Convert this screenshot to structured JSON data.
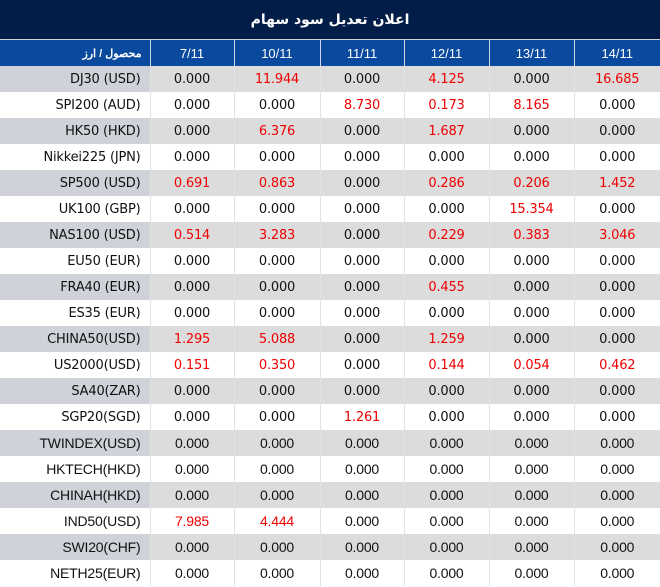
{
  "title": "اعلان تعدیل سود سهام",
  "header": {
    "label": "محصول / ارز",
    "dates": [
      "7/11",
      "10/11",
      "11/11",
      "12/11",
      "13/11",
      "14/11"
    ]
  },
  "colors": {
    "title_bg": "#021e48",
    "header_bg": "#0a4a9e",
    "row_alt_bg": "#dcdcdc",
    "label_alt_bg": "#cfd2d8",
    "highlight_value": "#f00000",
    "zero_value": "#111111"
  },
  "rows": [
    {
      "name": "DJ30 (USD)",
      "values": [
        "0.000",
        "11.944",
        "0.000",
        "4.125",
        "0.000",
        "16.685"
      ]
    },
    {
      "name": "SPI200 (AUD)",
      "values": [
        "0.000",
        "0.000",
        "8.730",
        "0.173",
        "8.165",
        "0.000"
      ]
    },
    {
      "name": "HK50 (HKD)",
      "values": [
        "0.000",
        "6.376",
        "0.000",
        "1.687",
        "0.000",
        "0.000"
      ]
    },
    {
      "name": "Nikkei225 (JPN)",
      "values": [
        "0.000",
        "0.000",
        "0.000",
        "0.000",
        "0.000",
        "0.000"
      ]
    },
    {
      "name": "SP500 (USD)",
      "values": [
        "0.691",
        "0.863",
        "0.000",
        "0.286",
        "0.206",
        "1.452"
      ]
    },
    {
      "name": "UK100 (GBP)",
      "values": [
        "0.000",
        "0.000",
        "0.000",
        "0.000",
        "15.354",
        "0.000"
      ]
    },
    {
      "name": "NAS100 (USD)",
      "values": [
        "0.514",
        "3.283",
        "0.000",
        "0.229",
        "0.383",
        "3.046"
      ]
    },
    {
      "name": "EU50 (EUR)",
      "values": [
        "0.000",
        "0.000",
        "0.000",
        "0.000",
        "0.000",
        "0.000"
      ]
    },
    {
      "name": "FRA40 (EUR)",
      "values": [
        "0.000",
        "0.000",
        "0.000",
        "0.455",
        "0.000",
        "0.000"
      ]
    },
    {
      "name": "ES35 (EUR)",
      "values": [
        "0.000",
        "0.000",
        "0.000",
        "0.000",
        "0.000",
        "0.000"
      ]
    },
    {
      "name": "CHINA50(USD)",
      "values": [
        "1.295",
        "5.088",
        "0.000",
        "1.259",
        "0.000",
        "0.000"
      ]
    },
    {
      "name": "US2000(USD)",
      "values": [
        "0.151",
        "0.350",
        "0.000",
        "0.144",
        "0.054",
        "0.462"
      ]
    },
    {
      "name": "SA40(ZAR)",
      "values": [
        "0.000",
        "0.000",
        "0.000",
        "0.000",
        "0.000",
        "0.000"
      ]
    },
    {
      "name": "SGP20(SGD)",
      "values": [
        "0.000",
        "0.000",
        "1.261",
        "0.000",
        "0.000",
        "0.000"
      ]
    },
    {
      "name": "TWINDEX(USD)",
      "values": [
        "0.000",
        "0.000",
        "0.000",
        "0.000",
        "0.000",
        "0.000"
      ]
    },
    {
      "name": "HKTECH(HKD)",
      "values": [
        "0.000",
        "0.000",
        "0.000",
        "0.000",
        "0.000",
        "0.000"
      ]
    },
    {
      "name": "CHINAH(HKD)",
      "values": [
        "0.000",
        "0.000",
        "0.000",
        "0.000",
        "0.000",
        "0.000"
      ]
    },
    {
      "name": "IND50(USD)",
      "values": [
        "7.985",
        "4.444",
        "0.000",
        "0.000",
        "0.000",
        "0.000"
      ]
    },
    {
      "name": "SWI20(CHF)",
      "values": [
        "0.000",
        "0.000",
        "0.000",
        "0.000",
        "0.000",
        "0.000"
      ]
    },
    {
      "name": "NETH25(EUR)",
      "values": [
        "0.000",
        "0.000",
        "0.000",
        "0.000",
        "0.000",
        "0.000"
      ]
    }
  ]
}
